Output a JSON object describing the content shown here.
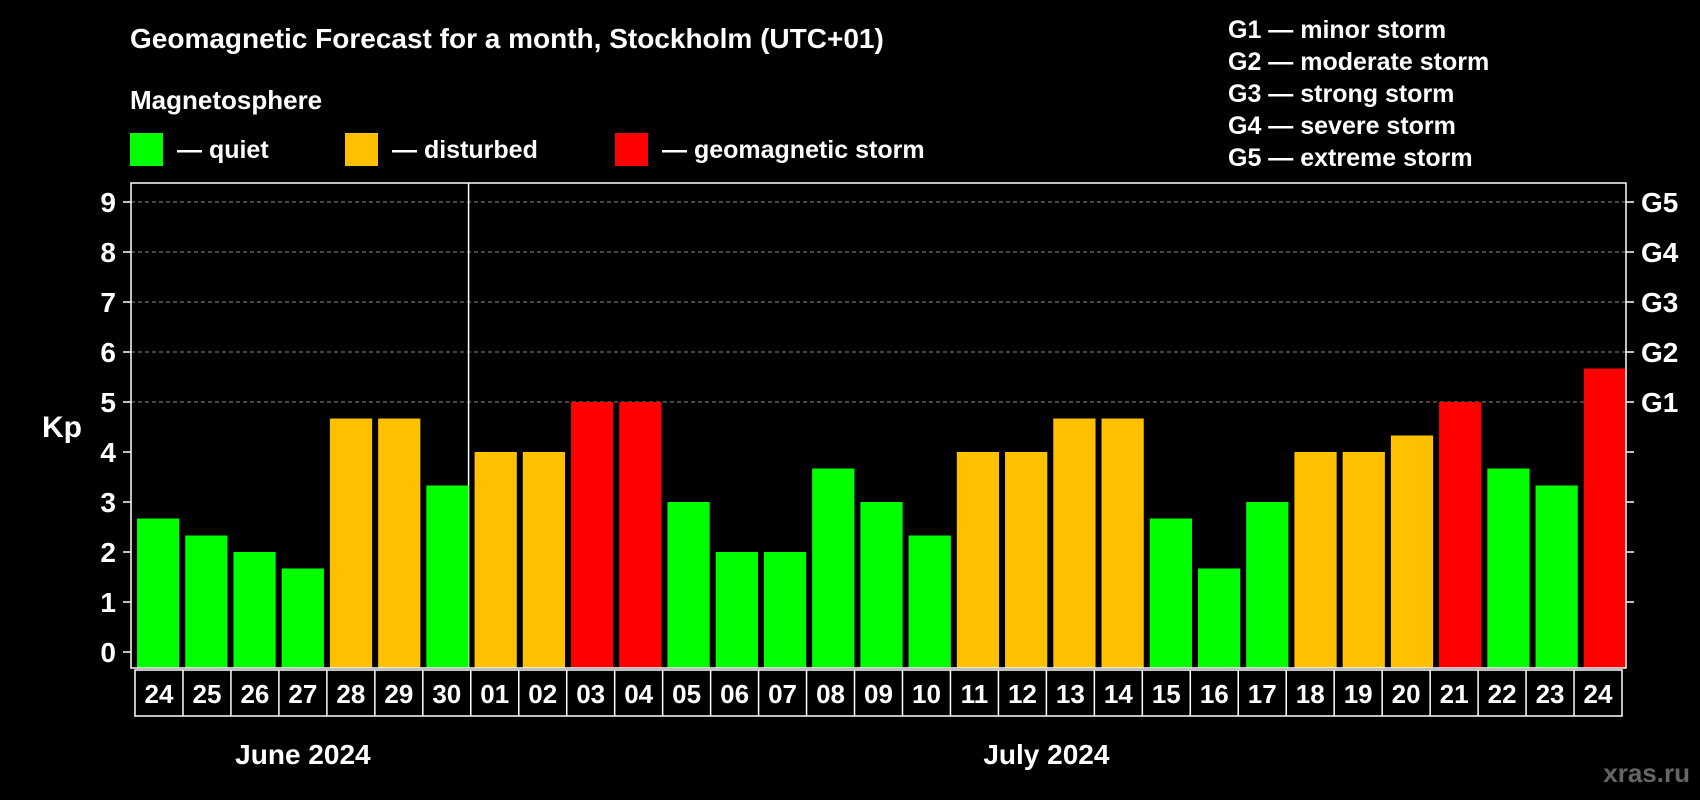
{
  "chart_data": {
    "type": "bar",
    "title": "Geomagnetic Forecast for a month, Stockholm (UTC+01)",
    "subtitle": "Magnetosphere",
    "ylabel": "Kp",
    "ylim": [
      0,
      9
    ],
    "yticks": [
      "0",
      "1",
      "2",
      "3",
      "4",
      "5",
      "6",
      "7",
      "8",
      "9"
    ],
    "right_ticks": [
      {
        "kp": 5,
        "label": "G1"
      },
      {
        "kp": 6,
        "label": "G2"
      },
      {
        "kp": 7,
        "label": "G3"
      },
      {
        "kp": 8,
        "label": "G4"
      },
      {
        "kp": 9,
        "label": "G5"
      }
    ],
    "grid": true,
    "legend": {
      "items": [
        {
          "label": "— quiet",
          "color": "#00ff00"
        },
        {
          "label": "— disturbed",
          "color": "#ffc000"
        },
        {
          "label": "— geomagnetic storm",
          "color": "#ff0000"
        }
      ],
      "storm_scale": [
        "G1 — minor storm",
        "G2 — moderate storm",
        "G3 — strong storm",
        "G4 — severe storm",
        "G5 — extreme storm"
      ]
    },
    "months": [
      {
        "label": "June 2024",
        "count": 7
      },
      {
        "label": "July 2024",
        "count": 24
      }
    ],
    "categories": [
      "24",
      "25",
      "26",
      "27",
      "28",
      "29",
      "30",
      "01",
      "02",
      "03",
      "04",
      "05",
      "06",
      "07",
      "08",
      "09",
      "10",
      "11",
      "12",
      "13",
      "14",
      "15",
      "16",
      "17",
      "18",
      "19",
      "20",
      "21",
      "22",
      "23",
      "24"
    ],
    "values": [
      2.67,
      2.33,
      2,
      1.67,
      4.67,
      4.67,
      3.33,
      4,
      4,
      5,
      5,
      3,
      2,
      2,
      3.67,
      3,
      2.33,
      4,
      4,
      4.67,
      4.67,
      2.67,
      1.67,
      3,
      4,
      4,
      4.33,
      5,
      3.67,
      3.33,
      5.67
    ],
    "colors": {
      "quiet": "#00ff00",
      "disturbed": "#ffc000",
      "storm": "#ff0000"
    },
    "watermark": "xras.ru"
  }
}
